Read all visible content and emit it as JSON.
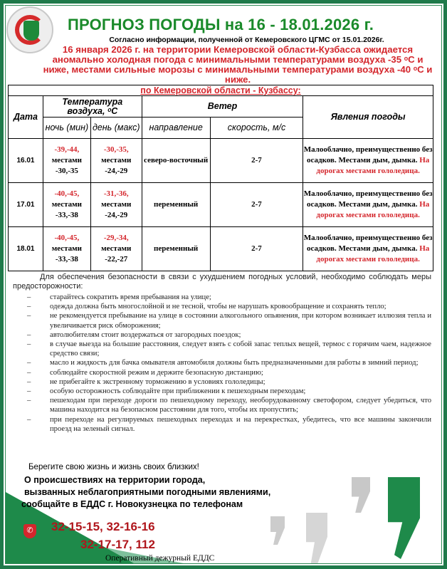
{
  "header": {
    "logo_text": "ЗАЩИТА НАСЕЛЕНИЯ И ТЕРРИТОРИЙ НОВОКУЗНЕЦК",
    "title": "ПРОГНОЗ ПОГОДЫ на 16 - 18.01.2026 г.",
    "source": "Согласно информации, полученной от Кемеровского ЦГМС от 15.01.2026г.",
    "alert": "16 января 2026 г. на территории Кемеровской области-Кузбасса ожидается аномально холодная погода с минимальными температурами воздуха -35 ᵒС и ниже, местами сильные морозы с минимальными температурами воздуха -40 ᵒС и ниже."
  },
  "table": {
    "region": "по Кемеровской области - Кузбассу:",
    "headers": {
      "date": "Дата",
      "temp": "Температура воздуха, ᵒС",
      "night": "ночь (мин)",
      "day": "день (макс)",
      "wind": "Ветер",
      "direction": "направление",
      "speed": "скорость, м/с",
      "phenomena": "Явления погоды"
    },
    "rows": [
      {
        "date": "16.01",
        "night_main": "-39,-44,",
        "night_local": "местами -30,-35",
        "day_main": "-30,-35,",
        "day_local": "местами -24,-29",
        "direction": "северо-восточный",
        "speed": "2-7",
        "phen": "Малооблачно, преимущественно без осадков. Местами дым, дымка.",
        "phen_red": "На дорогах местами гололедица."
      },
      {
        "date": "17.01",
        "night_main": "-40,-45,",
        "night_local": "местами -33,-38",
        "day_main": "-31,-36,",
        "day_local": "местами -24,-29",
        "direction": "переменный",
        "speed": "2-7",
        "phen": "Малооблачно, преимущественно без осадков. Местами дым, дымка.",
        "phen_red": "На дорогах местами гололедица."
      },
      {
        "date": "18.01",
        "night_main": "-40,-45,",
        "night_local": "местами -33,-38",
        "day_main": "-29,-34,",
        "day_local": "местами -22,-27",
        "direction": "переменный",
        "speed": "2-7",
        "phen": "Малооблачно, преимущественно без осадков. Местами дым, дымка.",
        "phen_red": "На дорогах местами гололедица."
      }
    ]
  },
  "safety": {
    "intro": "Для обеспечения безопасности в связи с ухудшением погодных условий, необходимо соблюдать меры предосторожности:",
    "dash": "–",
    "items": [
      "старайтесь сократить время пребывания на улице;",
      "одежда должна быть многослойной и не тесной, чтобы не нарушать кровообращение и сохранять тепло;",
      "не рекомендуется пребывание на улице в состоянии алкогольного опьянения, при котором возникает иллюзия тепла и увеличивается риск обморожения;",
      "автолюбителям стоит воздержаться от загородных поездок;",
      "в случае выезда на большие расстояния, следует взять с собой запас теплых вещей, термос с горячим чаем, надежное средство связи;",
      "масло и жидкость для бачка омывателя автомобиля должны быть предназначенными для работы в зимний период;",
      "соблюдайте скоростной режим и держите безопасную дистанцию;",
      "не прибегайте к экстренному торможению в условиях гололедицы;",
      "особую осторожность соблюдайте при приближении к пешеходным переходам;",
      "пешеходам при переходе дороги по пешеходному переходу, необорудованному светофором, следует убедиться, что машина находится на безопасном расстоянии для того, чтобы их пропустить;",
      "при переходе на регулируемых пешеходных переходах и на перекрестках, убедитесь, что все машины закончили проезд на зеленый сигнал."
    ],
    "closing": "Берегите свою жизнь и жизнь своих близких!"
  },
  "contact": {
    "line1": "О происшествиях на территории города,",
    "line2": "вызванных неблагоприятными погодными явлениями,",
    "line3": "сообщайте в ЕДДС г. Новокузнецка по телефонам",
    "phones1": "32-15-15, 32-16-16",
    "phones2": "32-17-17, 112",
    "signature": "Оперативный дежурный ЕДДС"
  },
  "colors": {
    "brand_green": "#1a8a2a",
    "alert_red": "#d4262c",
    "frame": "#1f7a4a"
  }
}
